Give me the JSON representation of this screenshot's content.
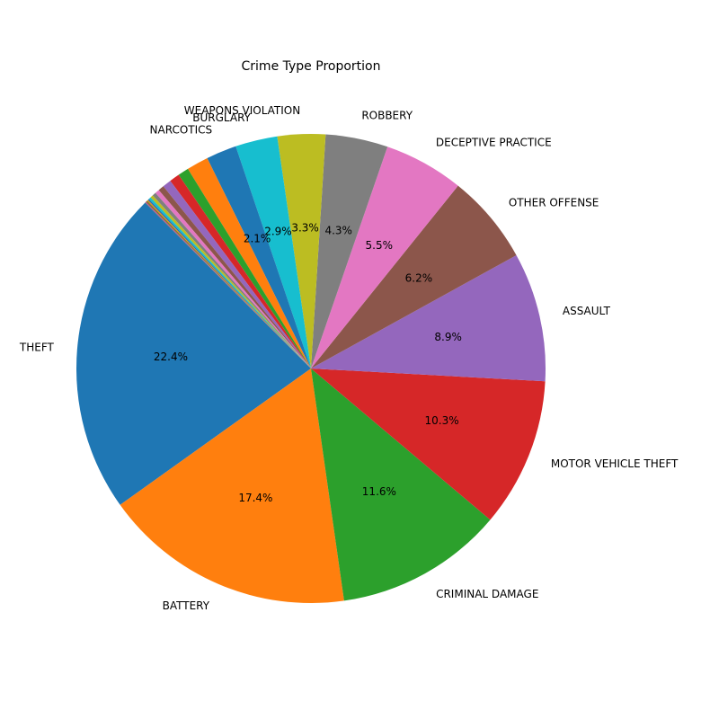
{
  "chart_data": {
    "type": "pie",
    "title": "Crime Type Proportion",
    "start_angle_deg": 135,
    "direction": "counterclockwise",
    "slices": [
      {
        "label": "THEFT",
        "value": 22.4,
        "pct_label": "22.4%",
        "color": "#1f77b4"
      },
      {
        "label": "BATTERY",
        "value": 17.4,
        "pct_label": "17.4%",
        "color": "#ff7f0e"
      },
      {
        "label": "CRIMINAL DAMAGE",
        "value": 11.6,
        "pct_label": "11.6%",
        "color": "#2ca02c"
      },
      {
        "label": "MOTOR VEHICLE THEFT",
        "value": 10.3,
        "pct_label": "10.3%",
        "color": "#d62728"
      },
      {
        "label": "ASSAULT",
        "value": 8.9,
        "pct_label": "8.9%",
        "color": "#9467bd"
      },
      {
        "label": "OTHER OFFENSE",
        "value": 6.2,
        "pct_label": "6.2%",
        "color": "#8c564b"
      },
      {
        "label": "DECEPTIVE PRACTICE",
        "value": 5.5,
        "pct_label": "5.5%",
        "color": "#e377c2"
      },
      {
        "label": "ROBBERY",
        "value": 4.3,
        "pct_label": "4.3%",
        "color": "#7f7f7f"
      },
      {
        "label": "WEAPONS VIOLATION",
        "value": 3.3,
        "pct_label": "3.3%",
        "color": "#bcbd22"
      },
      {
        "label": "BURGLARY",
        "value": 2.9,
        "pct_label": "2.9%",
        "color": "#17becf"
      },
      {
        "label": "NARCOTICS",
        "value": 2.1,
        "pct_label": "2.1%",
        "color": "#1f77b4"
      },
      {
        "label": "",
        "value": 1.5,
        "pct_label": "",
        "color": "#ff7f0e"
      },
      {
        "label": "",
        "value": 0.75,
        "pct_label": "",
        "color": "#2ca02c"
      },
      {
        "label": "",
        "value": 0.7,
        "pct_label": "",
        "color": "#d62728"
      },
      {
        "label": "",
        "value": 0.6,
        "pct_label": "",
        "color": "#9467bd"
      },
      {
        "label": "",
        "value": 0.4,
        "pct_label": "",
        "color": "#8c564b"
      },
      {
        "label": "",
        "value": 0.3,
        "pct_label": "",
        "color": "#e377c2"
      },
      {
        "label": "",
        "value": 0.25,
        "pct_label": "",
        "color": "#7f7f7f"
      },
      {
        "label": "",
        "value": 0.2,
        "pct_label": "",
        "color": "#bcbd22"
      },
      {
        "label": "",
        "value": 0.15,
        "pct_label": "",
        "color": "#17becf"
      },
      {
        "label": "",
        "value": 0.1,
        "pct_label": "",
        "color": "#1f77b4"
      },
      {
        "label": "",
        "value": 0.08,
        "pct_label": "",
        "color": "#ff7f0e"
      },
      {
        "label": "",
        "value": 0.06,
        "pct_label": "",
        "color": "#2ca02c"
      },
      {
        "label": "",
        "value": 0.05,
        "pct_label": "",
        "color": "#d62728"
      },
      {
        "label": "",
        "value": 0.04,
        "pct_label": "",
        "color": "#9467bd"
      },
      {
        "label": "",
        "value": 0.03,
        "pct_label": "",
        "color": "#8c564b"
      }
    ]
  }
}
